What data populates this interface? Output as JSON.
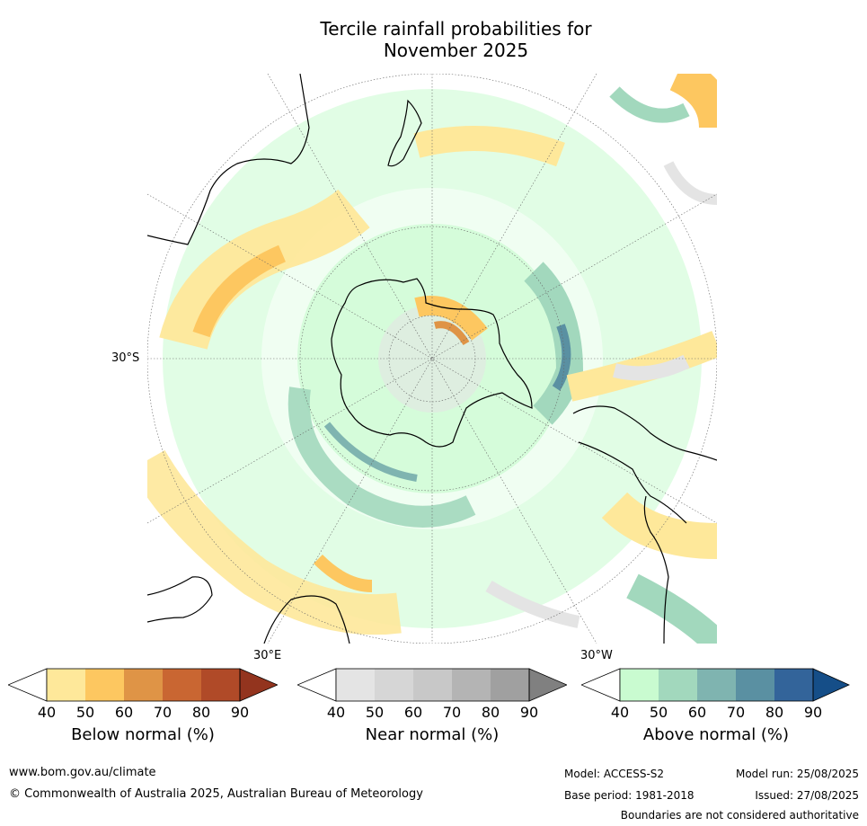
{
  "title_line1": "Tercile rainfall probabilities for",
  "title_line2": "November 2025",
  "map": {
    "lat_label": "30°S",
    "lon_labels": [
      "30°E",
      "30°W"
    ]
  },
  "colorbars": [
    {
      "label": "Below normal (%)",
      "ticks": [
        "40",
        "50",
        "60",
        "70",
        "80",
        "90"
      ],
      "colors": [
        "#ffffff",
        "#fee89a",
        "#fdc760",
        "#df9446",
        "#c96632",
        "#b04a28",
        "#93341e"
      ]
    },
    {
      "label": "Near normal (%)",
      "ticks": [
        "40",
        "50",
        "60",
        "70",
        "80",
        "90"
      ],
      "colors": [
        "#ffffff",
        "#e4e4e4",
        "#d6d6d6",
        "#c8c8c8",
        "#b4b4b4",
        "#a0a0a0",
        "#808080"
      ]
    },
    {
      "label": "Above normal (%)",
      "ticks": [
        "40",
        "50",
        "60",
        "70",
        "80",
        "90"
      ],
      "colors": [
        "#ffffff",
        "#c9fbd0",
        "#a2d8bd",
        "#7fb4b0",
        "#5a90a2",
        "#33649a",
        "#154e88"
      ]
    }
  ],
  "footer": {
    "url": "www.bom.gov.au/climate",
    "copyright": "© Commonwealth of Australia 2025, Australian Bureau of Meteorology",
    "model": "Model: ACCESS-S2",
    "base_period": "Base period: 1981-2018",
    "model_run": "Model run: 25/08/2025",
    "issued": "Issued: 27/08/2025",
    "disclaimer": "Boundaries are not considered authoritative"
  }
}
